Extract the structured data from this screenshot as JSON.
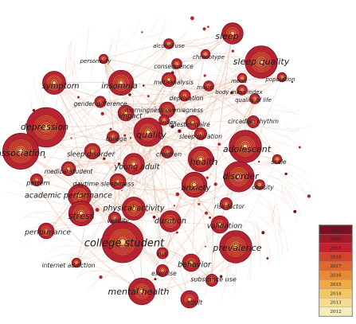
{
  "network": {
    "nodes": [
      {
        "id": "sleep",
        "label": "sleep",
        "weight": 0.45
      },
      {
        "id": "alcohol-use",
        "label": "alcohol use",
        "weight": 0.15
      },
      {
        "id": "chronotype",
        "label": "chronotype",
        "weight": 0.12
      },
      {
        "id": "sleep-quality",
        "label": "sleep quality",
        "weight": 0.75
      },
      {
        "id": "personality",
        "label": "personality",
        "weight": 0.12
      },
      {
        "id": "consequence",
        "label": "consequence",
        "weight": 0.15
      },
      {
        "id": "population",
        "label": "population",
        "weight": 0.12
      },
      {
        "id": "symptom",
        "label": "symptom",
        "weight": 0.5
      },
      {
        "id": "insomnia",
        "label": "insomnia",
        "weight": 0.55
      },
      {
        "id": "metaanalysis",
        "label": "metaanalysis",
        "weight": 0.25
      },
      {
        "id": "mood",
        "label": "mood",
        "weight": 0.12
      },
      {
        "id": "model",
        "label": "model",
        "weight": 0.15
      },
      {
        "id": "body-mass-index",
        "label": "body mass index",
        "weight": 0.15
      },
      {
        "id": "quality-of-life",
        "label": "quality of life",
        "weight": 0.15
      },
      {
        "id": "deprivation",
        "label": "deprivation",
        "weight": 0.18
      },
      {
        "id": "gender-difference",
        "label": "gender difference",
        "weight": 0.18
      },
      {
        "id": "morningness-eveningness",
        "label": "morningness eveningness",
        "weight": 0.3
      },
      {
        "id": "impact",
        "label": "impact",
        "weight": 0.3
      },
      {
        "id": "index",
        "label": "index",
        "weight": 0.15
      },
      {
        "id": "questionnaire",
        "label": "questionnaire",
        "weight": 0.25
      },
      {
        "id": "circadian-rhythm",
        "label": "circadian rhythm",
        "weight": 0.2
      },
      {
        "id": "depression",
        "label": "depression",
        "weight": 0.95
      },
      {
        "id": "quality",
        "label": "quality",
        "weight": 0.65
      },
      {
        "id": "college",
        "label": "college",
        "weight": 0.2
      },
      {
        "id": "sleep-duration",
        "label": "sleep duration",
        "weight": 0.2
      },
      {
        "id": "association",
        "label": "association",
        "weight": 0.85
      },
      {
        "id": "sleep-disorder",
        "label": "sleep disorder",
        "weight": 0.3
      },
      {
        "id": "children",
        "label": "children",
        "weight": 0.2
      },
      {
        "id": "adolescent",
        "label": "adolescent",
        "weight": 0.75
      },
      {
        "id": "scale",
        "label": "scale",
        "weight": 0.12
      },
      {
        "id": "medical-student",
        "label": "medical student",
        "weight": 0.25
      },
      {
        "id": "young-adult",
        "label": "young adult",
        "weight": 0.45
      },
      {
        "id": "health",
        "label": "health",
        "weight": 0.55
      },
      {
        "id": "pattern",
        "label": "pattern",
        "weight": 0.2
      },
      {
        "id": "disorder",
        "label": "disorder",
        "weight": 0.7
      },
      {
        "id": "daytime-sleepiness",
        "label": "daytime sleepiness",
        "weight": 0.3
      },
      {
        "id": "anxiety",
        "label": "anxiety",
        "weight": 0.55
      },
      {
        "id": "obesity",
        "label": "obesity",
        "weight": 0.15
      },
      {
        "id": "academic-performance",
        "label": "academic performance",
        "weight": 0.5
      },
      {
        "id": "risk-factor",
        "label": "risk factor",
        "weight": 0.2
      },
      {
        "id": "stress",
        "label": "stress",
        "weight": 0.55
      },
      {
        "id": "physical-activity",
        "label": "physical activity",
        "weight": 0.5
      },
      {
        "id": "validity",
        "label": "validity",
        "weight": 0.2
      },
      {
        "id": "duration",
        "label": "duration",
        "weight": 0.45
      },
      {
        "id": "validation",
        "label": "validation",
        "weight": 0.35
      },
      {
        "id": "performance",
        "label": "performance",
        "weight": 0.3
      },
      {
        "id": "college-student",
        "label": "college student",
        "weight": 1.0
      },
      {
        "id": "prevalence",
        "label": "prevalence",
        "weight": 0.75
      },
      {
        "id": "risk",
        "label": "risk",
        "weight": 0.18
      },
      {
        "id": "internet-addiction",
        "label": "internet addiction",
        "weight": 0.12
      },
      {
        "id": "behavior",
        "label": "behavior",
        "weight": 0.35
      },
      {
        "id": "exercise",
        "label": "exercise",
        "weight": 0.2
      },
      {
        "id": "substance-use",
        "label": "substance use",
        "weight": 0.2
      },
      {
        "id": "mental-health",
        "label": "mental health",
        "weight": 0.6
      },
      {
        "id": "adult",
        "label": "adult",
        "weight": 0.35
      }
    ]
  },
  "legend": {
    "years": [
      "2021",
      "2020",
      "2019",
      "2018",
      "2017",
      "2016",
      "2015",
      "2014",
      "2013",
      "2012"
    ],
    "colors": [
      "#7a1024",
      "#a11a2a",
      "#c0232e",
      "#d4432c",
      "#e0662c",
      "#e88a34",
      "#eeaa44",
      "#f2c864",
      "#f5dd90",
      "#f7ecbc"
    ]
  },
  "palette": {
    "ring_inner": "#f5d878",
    "ring_mid": "#e0802f",
    "ring_outer": "#b52530",
    "ring_dark": "#7a1024",
    "link": "#e6b49a"
  }
}
